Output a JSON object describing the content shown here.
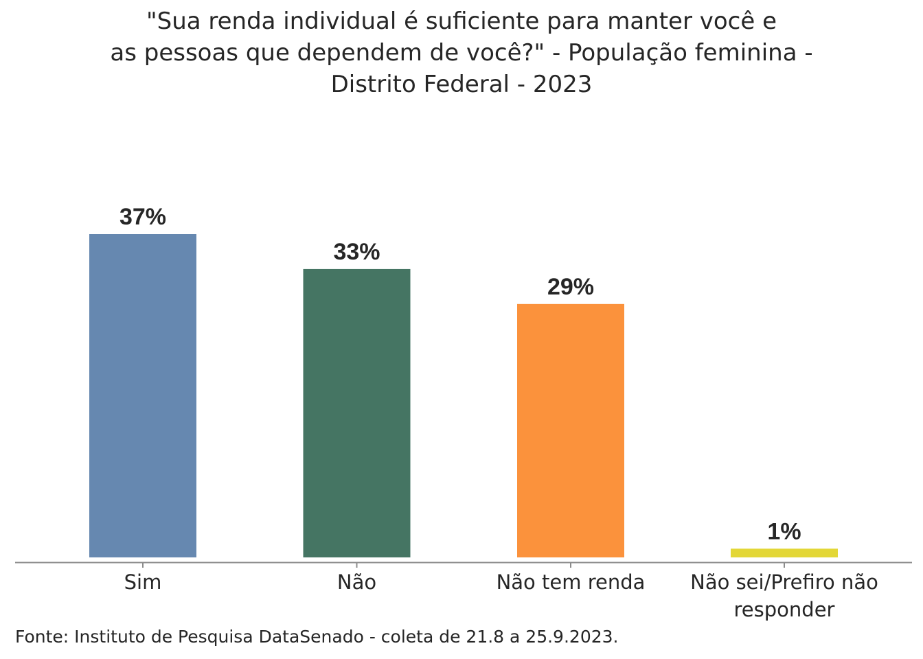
{
  "chart_data": {
    "type": "bar",
    "title_lines": [
      "\"Sua renda individual é suficiente para manter você e",
      "as pessoas que dependem de você?\" - População feminina -",
      "Distrito Federal - 2023"
    ],
    "categories": [
      "Sim",
      "Não",
      "Não tem renda",
      "Não sei/Prefiro não responder"
    ],
    "category_label_lines": [
      [
        "Sim"
      ],
      [
        "Não"
      ],
      [
        "Não tem renda"
      ],
      [
        "Não sei/Prefiro não",
        "responder"
      ]
    ],
    "values": [
      37,
      33,
      29,
      1
    ],
    "data_labels": [
      "37%",
      "33%",
      "29%",
      "1%"
    ],
    "colors": [
      "#6688b0",
      "#457563",
      "#fb923c",
      "#e3d737"
    ],
    "xlabel": "",
    "ylabel": "",
    "ylim": [
      0,
      37
    ],
    "grid": false,
    "source": "Fonte: Instituto de Pesquisa DataSenado - coleta de 21.8 a 25.9.2023."
  }
}
